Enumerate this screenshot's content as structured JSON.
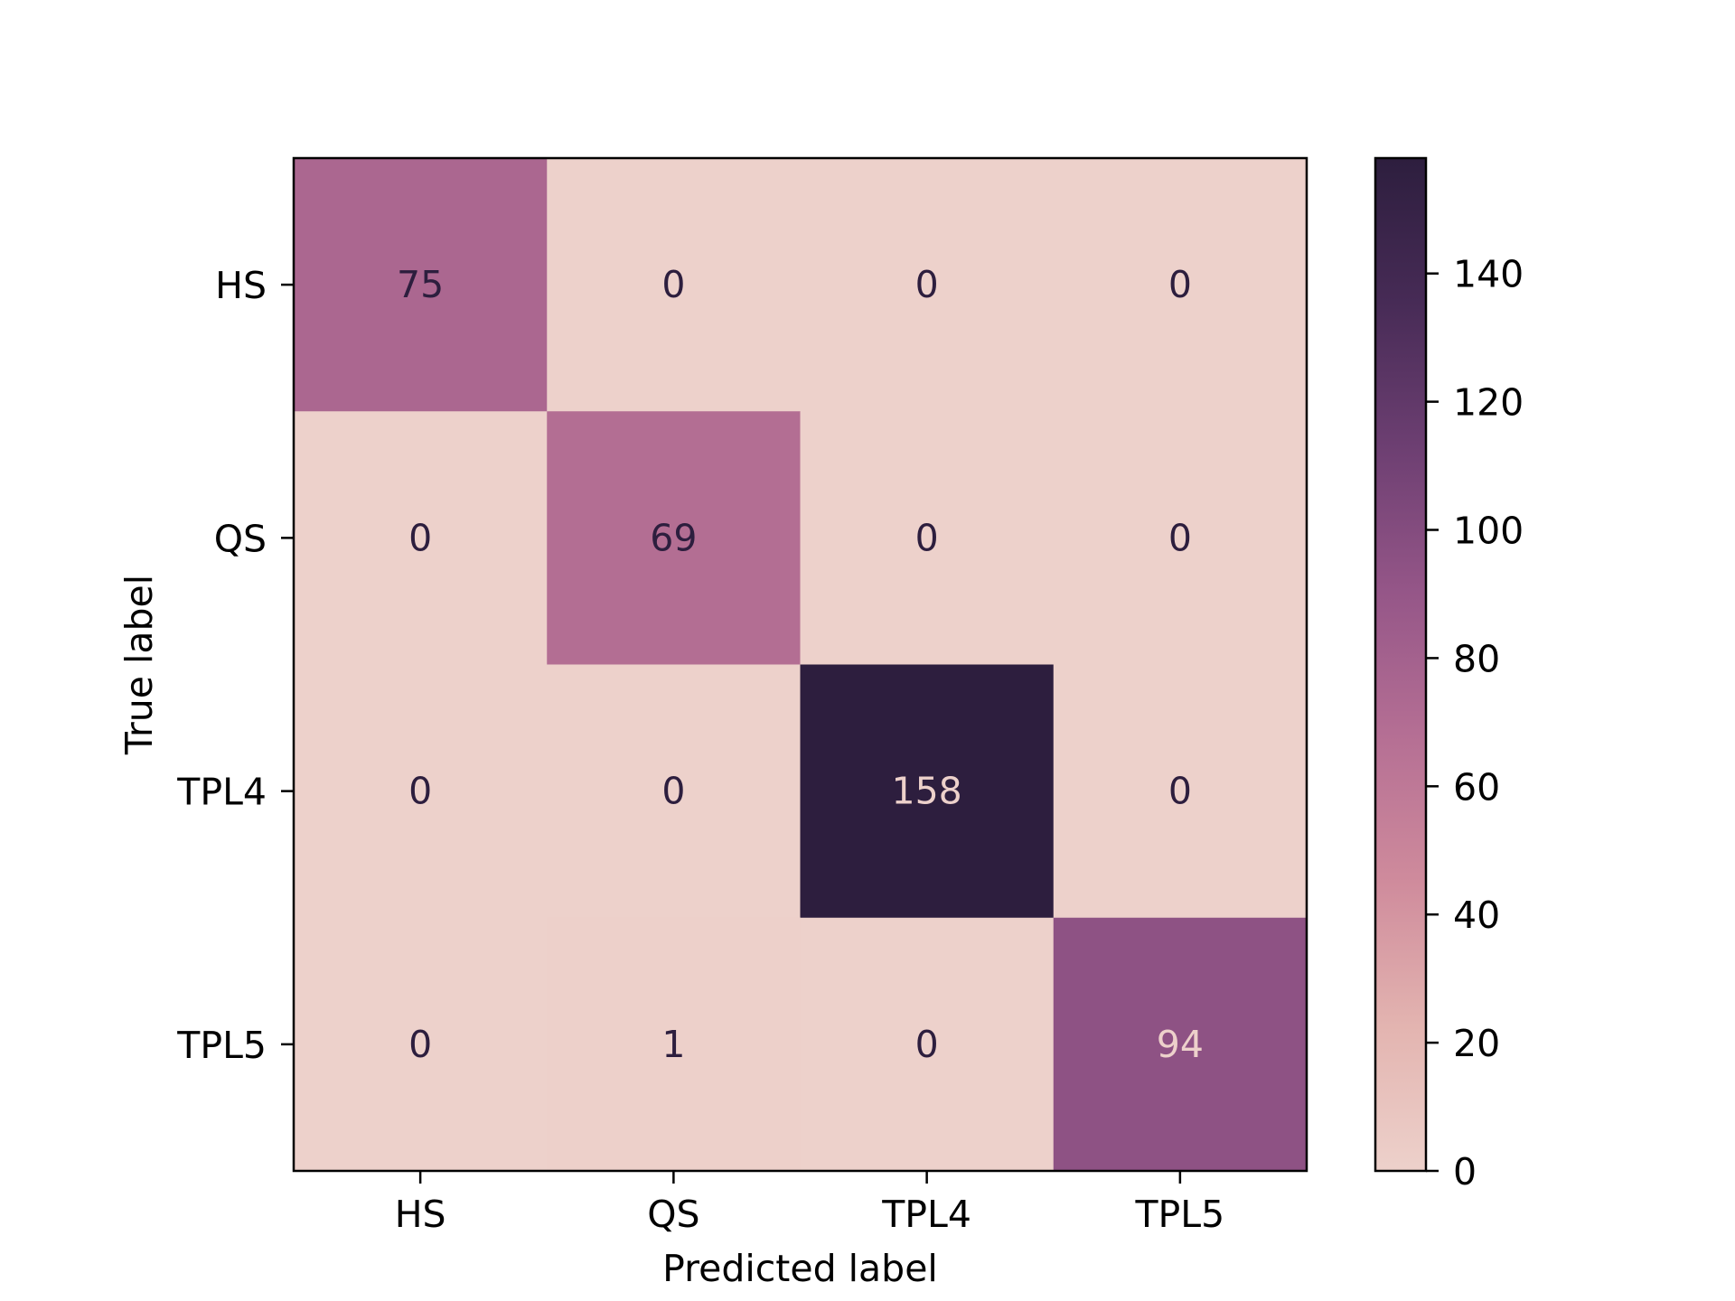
{
  "chart_data": {
    "type": "heatmap",
    "title": "",
    "xlabel": "Predicted label",
    "ylabel": "True label",
    "x_categories": [
      "HS",
      "QS",
      "TPL4",
      "TPL5"
    ],
    "y_categories": [
      "HS",
      "QS",
      "TPL4",
      "TPL5"
    ],
    "values": [
      [
        75,
        0,
        0,
        0
      ],
      [
        0,
        69,
        0,
        0
      ],
      [
        0,
        0,
        158,
        0
      ],
      [
        0,
        1,
        0,
        94
      ]
    ],
    "colorbar": {
      "min": 0,
      "max": 158,
      "ticks": [
        0,
        20,
        40,
        60,
        80,
        100,
        120,
        140
      ]
    },
    "colormap": {
      "low": "#edd1cb",
      "high": "#2d1e3e",
      "stops": [
        "#edd1cb",
        "#e3b4b0",
        "#cf8b9c",
        "#b56f94",
        "#955688",
        "#6d3f72",
        "#472b56",
        "#2d1e3e"
      ]
    },
    "text_colors": {
      "on_light": "#2d1e3e",
      "on_dark": "#edd1cb"
    },
    "grid": false
  }
}
